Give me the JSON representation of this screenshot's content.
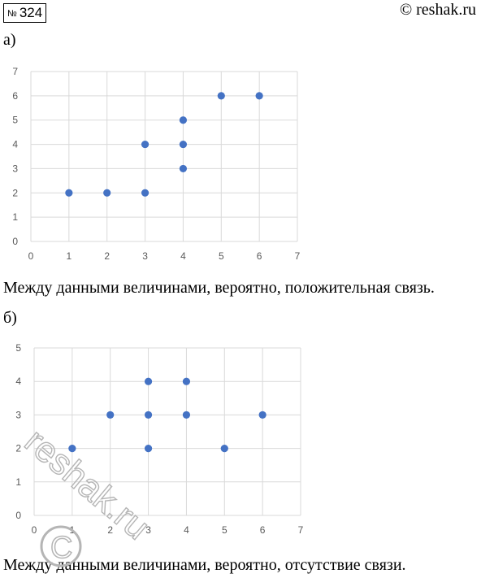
{
  "header": {
    "task_sign": "№",
    "task_number": "324",
    "copyright": "© reshak.ru"
  },
  "parts": [
    {
      "label": "а)",
      "conclusion": "Между данными величинами, вероятно, положительная связь."
    },
    {
      "label": "б)",
      "conclusion": "Между данными величинами, вероятно, отсутствие связи."
    }
  ],
  "chart_data": [
    {
      "type": "scatter",
      "title": "",
      "xlabel": "",
      "ylabel": "",
      "xlim": [
        0,
        7
      ],
      "ylim": [
        0,
        7
      ],
      "xticks": [
        0,
        1,
        2,
        3,
        4,
        5,
        6,
        7
      ],
      "yticks": [
        0,
        1,
        2,
        3,
        4,
        5,
        6,
        7
      ],
      "grid": true,
      "color": "#4472c4",
      "points": [
        [
          1,
          2
        ],
        [
          2,
          2
        ],
        [
          3,
          2
        ],
        [
          3,
          4
        ],
        [
          4,
          3
        ],
        [
          4,
          4
        ],
        [
          4,
          5
        ],
        [
          5,
          6
        ],
        [
          6,
          6
        ]
      ]
    },
    {
      "type": "scatter",
      "title": "",
      "xlabel": "",
      "ylabel": "",
      "xlim": [
        0,
        7
      ],
      "ylim": [
        0,
        5
      ],
      "xticks": [
        0,
        1,
        2,
        3,
        4,
        5,
        6,
        7
      ],
      "yticks": [
        0,
        1,
        2,
        3,
        4,
        5
      ],
      "grid": true,
      "color": "#4472c4",
      "points": [
        [
          1,
          2
        ],
        [
          2,
          3
        ],
        [
          3,
          2
        ],
        [
          3,
          3
        ],
        [
          3,
          4
        ],
        [
          4,
          3
        ],
        [
          4,
          4
        ],
        [
          5,
          2
        ],
        [
          6,
          3
        ]
      ]
    }
  ],
  "watermark": {
    "text": "reshak.ru",
    "symbol": "©"
  }
}
